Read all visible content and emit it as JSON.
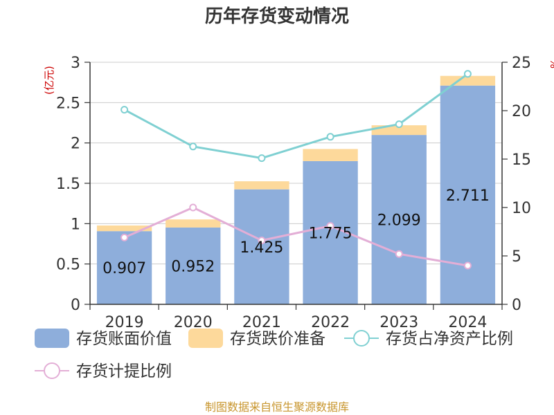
{
  "chart_data": {
    "type": "bar",
    "title": "历年存货变动情况",
    "categories": [
      "2019",
      "2020",
      "2021",
      "2022",
      "2023",
      "2024"
    ],
    "y_left": {
      "unit": "(亿元)",
      "range": [
        0,
        3
      ],
      "ticks": [
        "0",
        "0.5",
        "1",
        "1.5",
        "2",
        "2.5",
        "3"
      ]
    },
    "y_right": {
      "unit": "%",
      "range": [
        0,
        25
      ],
      "ticks": [
        "0",
        "5",
        "10",
        "15",
        "20",
        "25"
      ]
    },
    "series": [
      {
        "name": "存货账面价值",
        "kind": "bar",
        "axis": "left",
        "color": "#8eaedb",
        "values": [
          0.907,
          0.952,
          1.425,
          1.775,
          2.099,
          2.711
        ],
        "labels": [
          "0.907",
          "0.952",
          "1.425",
          "1.775",
          "2.099",
          "2.711"
        ]
      },
      {
        "name": "存货跌价准备",
        "kind": "bar",
        "stack": true,
        "axis": "left",
        "color": "#fdd99b",
        "values": [
          0.07,
          0.1,
          0.1,
          0.15,
          0.12,
          0.12
        ]
      },
      {
        "name": "存货占净资产比例",
        "kind": "line",
        "axis": "right",
        "color": "#7fd0d2",
        "values": [
          20.1,
          16.3,
          15.1,
          17.3,
          18.6,
          23.8
        ]
      },
      {
        "name": "存货计提比例",
        "kind": "line",
        "axis": "right",
        "color": "#e3aed6",
        "values": [
          6.9,
          10.0,
          6.6,
          8.1,
          5.2,
          4.0
        ]
      }
    ],
    "grid": true,
    "legend_position": "bottom"
  },
  "footer": {
    "source": "制图数据来自恒生聚源数据库"
  }
}
